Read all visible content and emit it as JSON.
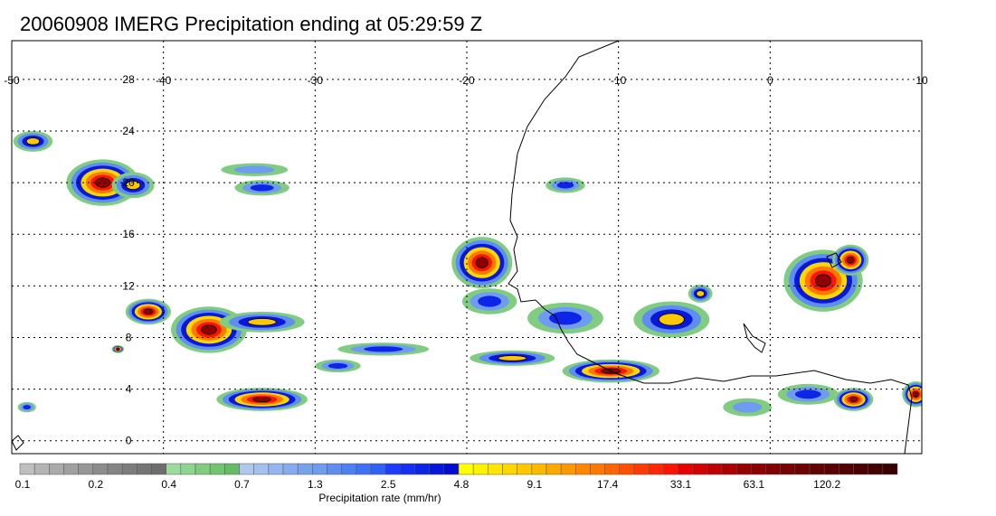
{
  "title": "20060908 IMERG Precipitation ending at 05:29:59 Z",
  "map": {
    "lon_range": [
      -50,
      10
    ],
    "lat_range": [
      -1,
      31
    ],
    "lon_ticks": [
      "-50",
      "-40",
      "-30",
      "-20",
      "-10",
      "0",
      "10"
    ],
    "lat_ticks": [
      "0",
      "4",
      "8",
      "12",
      "16",
      "20",
      "24",
      "28"
    ],
    "gridlines": true
  },
  "colorbar": {
    "caption": "Precipitation rate (mm/hr)",
    "tick_labels": [
      "0.1",
      "0.2",
      "0.4",
      "0.7",
      "1.3",
      "2.5",
      "4.8",
      "9.1",
      "17.4",
      "33.1",
      "63.1",
      "120.2"
    ],
    "bins_per_tick": 5,
    "colors": [
      "#bfbfbf",
      "#b4b4b4",
      "#aaaaaa",
      "#a0a0a0",
      "#969696",
      "#8c8c8c",
      "#848484",
      "#7c7c7c",
      "#757575",
      "#6e6e6e",
      "#9ed99e",
      "#8fd48f",
      "#80cc80",
      "#72c472",
      "#66bb66",
      "#b0c8ee",
      "#a3c0ef",
      "#94b6ee",
      "#86acec",
      "#78a3ea",
      "#6f9bf0",
      "#5f8df2",
      "#4f7ff4",
      "#3f70f5",
      "#2f61f6",
      "#1e3cff",
      "#1530f2",
      "#0d25e6",
      "#0618d9",
      "#000dcc",
      "#ffff00",
      "#fff200",
      "#ffe600",
      "#ffd700",
      "#ffc800",
      "#ffb800",
      "#ffa800",
      "#ff9800",
      "#ff8800",
      "#ff7800",
      "#ff6400",
      "#ff5000",
      "#ff3c00",
      "#ff2800",
      "#ff1400",
      "#e60000",
      "#d20000",
      "#be0000",
      "#aa0000",
      "#960000",
      "#8c0000",
      "#820000",
      "#780000",
      "#6e0000",
      "#640000",
      "#5a0000",
      "#520000",
      "#4a0000",
      "#420000",
      "#3a0000"
    ]
  },
  "precip_cells": [
    {
      "lon": -48.6,
      "lat": 23.2,
      "rx": 1.3,
      "ry": 0.8,
      "peak": 2
    },
    {
      "lon": -44.0,
      "lat": 20.0,
      "rx": 2.4,
      "ry": 1.8,
      "peak": 3
    },
    {
      "lon": -42.0,
      "lat": 19.8,
      "rx": 1.4,
      "ry": 1.0,
      "peak": 2
    },
    {
      "lon": -41.0,
      "lat": 10.0,
      "rx": 1.5,
      "ry": 1.0,
      "peak": 3
    },
    {
      "lon": -37.0,
      "lat": 8.6,
      "rx": 2.5,
      "ry": 1.8,
      "peak": 3
    },
    {
      "lon": -33.5,
      "lat": 9.2,
      "rx": 2.8,
      "ry": 0.8,
      "peak": 2
    },
    {
      "lon": -33.5,
      "lat": 3.2,
      "rx": 3.0,
      "ry": 0.9,
      "peak": 3
    },
    {
      "lon": -43.0,
      "lat": 7.1,
      "rx": 0.4,
      "ry": 0.3,
      "peak": 3
    },
    {
      "lon": -33.5,
      "lat": 19.6,
      "rx": 1.8,
      "ry": 0.6,
      "peak": 1
    },
    {
      "lon": -34.0,
      "lat": 21.0,
      "rx": 2.2,
      "ry": 0.5,
      "peak": 0
    },
    {
      "lon": -19.0,
      "lat": 13.8,
      "rx": 2.0,
      "ry": 2.0,
      "peak": 3
    },
    {
      "lon": -18.5,
      "lat": 10.8,
      "rx": 1.8,
      "ry": 1.0,
      "peak": 1
    },
    {
      "lon": -17.0,
      "lat": 6.4,
      "rx": 2.8,
      "ry": 0.6,
      "peak": 2
    },
    {
      "lon": -10.5,
      "lat": 5.4,
      "rx": 3.2,
      "ry": 0.9,
      "peak": 3
    },
    {
      "lon": -13.5,
      "lat": 9.5,
      "rx": 2.5,
      "ry": 1.2,
      "peak": 1
    },
    {
      "lon": -13.5,
      "lat": 19.8,
      "rx": 1.3,
      "ry": 0.6,
      "peak": 1
    },
    {
      "lon": -6.5,
      "lat": 9.4,
      "rx": 2.5,
      "ry": 1.4,
      "peak": 2
    },
    {
      "lon": -4.6,
      "lat": 11.4,
      "rx": 0.8,
      "ry": 0.7,
      "peak": 2
    },
    {
      "lon": 3.5,
      "lat": 12.4,
      "rx": 2.6,
      "ry": 2.4,
      "peak": 3
    },
    {
      "lon": 5.3,
      "lat": 14.0,
      "rx": 1.2,
      "ry": 1.2,
      "peak": 3
    },
    {
      "lon": 5.5,
      "lat": 3.2,
      "rx": 1.3,
      "ry": 0.9,
      "peak": 3
    },
    {
      "lon": 9.6,
      "lat": 3.6,
      "rx": 0.9,
      "ry": 1.0,
      "peak": 3
    },
    {
      "lon": 2.5,
      "lat": 3.6,
      "rx": 2.0,
      "ry": 0.8,
      "peak": 1
    },
    {
      "lon": -1.5,
      "lat": 2.6,
      "rx": 1.6,
      "ry": 0.7,
      "peak": 0
    },
    {
      "lon": -25.5,
      "lat": 7.1,
      "rx": 3.0,
      "ry": 0.5,
      "peak": 1
    },
    {
      "lon": -28.5,
      "lat": 5.8,
      "rx": 1.5,
      "ry": 0.5,
      "peak": 1
    },
    {
      "lon": -49.0,
      "lat": 2.6,
      "rx": 0.6,
      "ry": 0.4,
      "peak": 1
    }
  ]
}
